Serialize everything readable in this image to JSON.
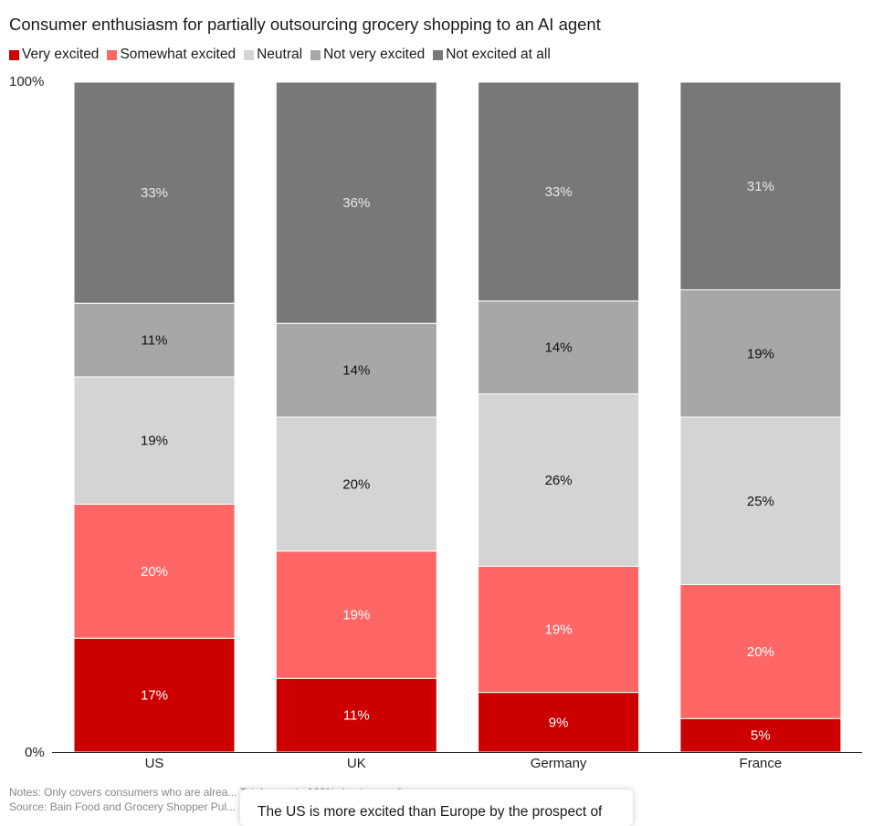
{
  "chart_data": {
    "type": "bar",
    "stacked": true,
    "title": "Consumer enthusiasm for partially outsourcing grocery shopping to an AI agent",
    "categories": [
      "US",
      "UK",
      "Germany",
      "France"
    ],
    "ylim": [
      0,
      100
    ],
    "yticks": [
      "0%",
      "100%"
    ],
    "legend_position": "top-left",
    "grid": false,
    "series": [
      {
        "name": "Very excited",
        "color": "#cc0000",
        "label_color": "#ffffff",
        "values": [
          17,
          11,
          9,
          5
        ],
        "labels": [
          "17%",
          "11%",
          "9%",
          "5%"
        ]
      },
      {
        "name": "Somewhat excited",
        "color": "#ff6666",
        "label_color": "#ffffff",
        "values": [
          20,
          19,
          19,
          20
        ],
        "labels": [
          "20%",
          "19%",
          "19%",
          "20%"
        ]
      },
      {
        "name": "Neutral",
        "color": "#d4d4d4",
        "label_color": "#111111",
        "values": [
          19,
          20,
          26,
          25
        ],
        "labels": [
          "19%",
          "20%",
          "26%",
          "25%"
        ]
      },
      {
        "name": "Not very excited",
        "color": "#a7a7a5",
        "label_color": "#111111",
        "values": [
          11,
          14,
          14,
          19
        ],
        "labels": [
          "11%",
          "14%",
          "14%",
          "19%"
        ]
      },
      {
        "name": "Not excited at all",
        "color": "#787876",
        "label_color": "#e8e8e8",
        "values": [
          33,
          36,
          33,
          31
        ],
        "labels": [
          "33%",
          "36%",
          "33%",
          "31%"
        ]
      }
    ]
  },
  "notes": {
    "line1": "Notes: Only covers consumers who are alrea... Totals sum to 100% due to rounding",
    "line2": "Source: Bain Food and Grocery Shopper Pul..."
  },
  "popup": {
    "text": "The US is more excited than Europe by the prospect of"
  }
}
